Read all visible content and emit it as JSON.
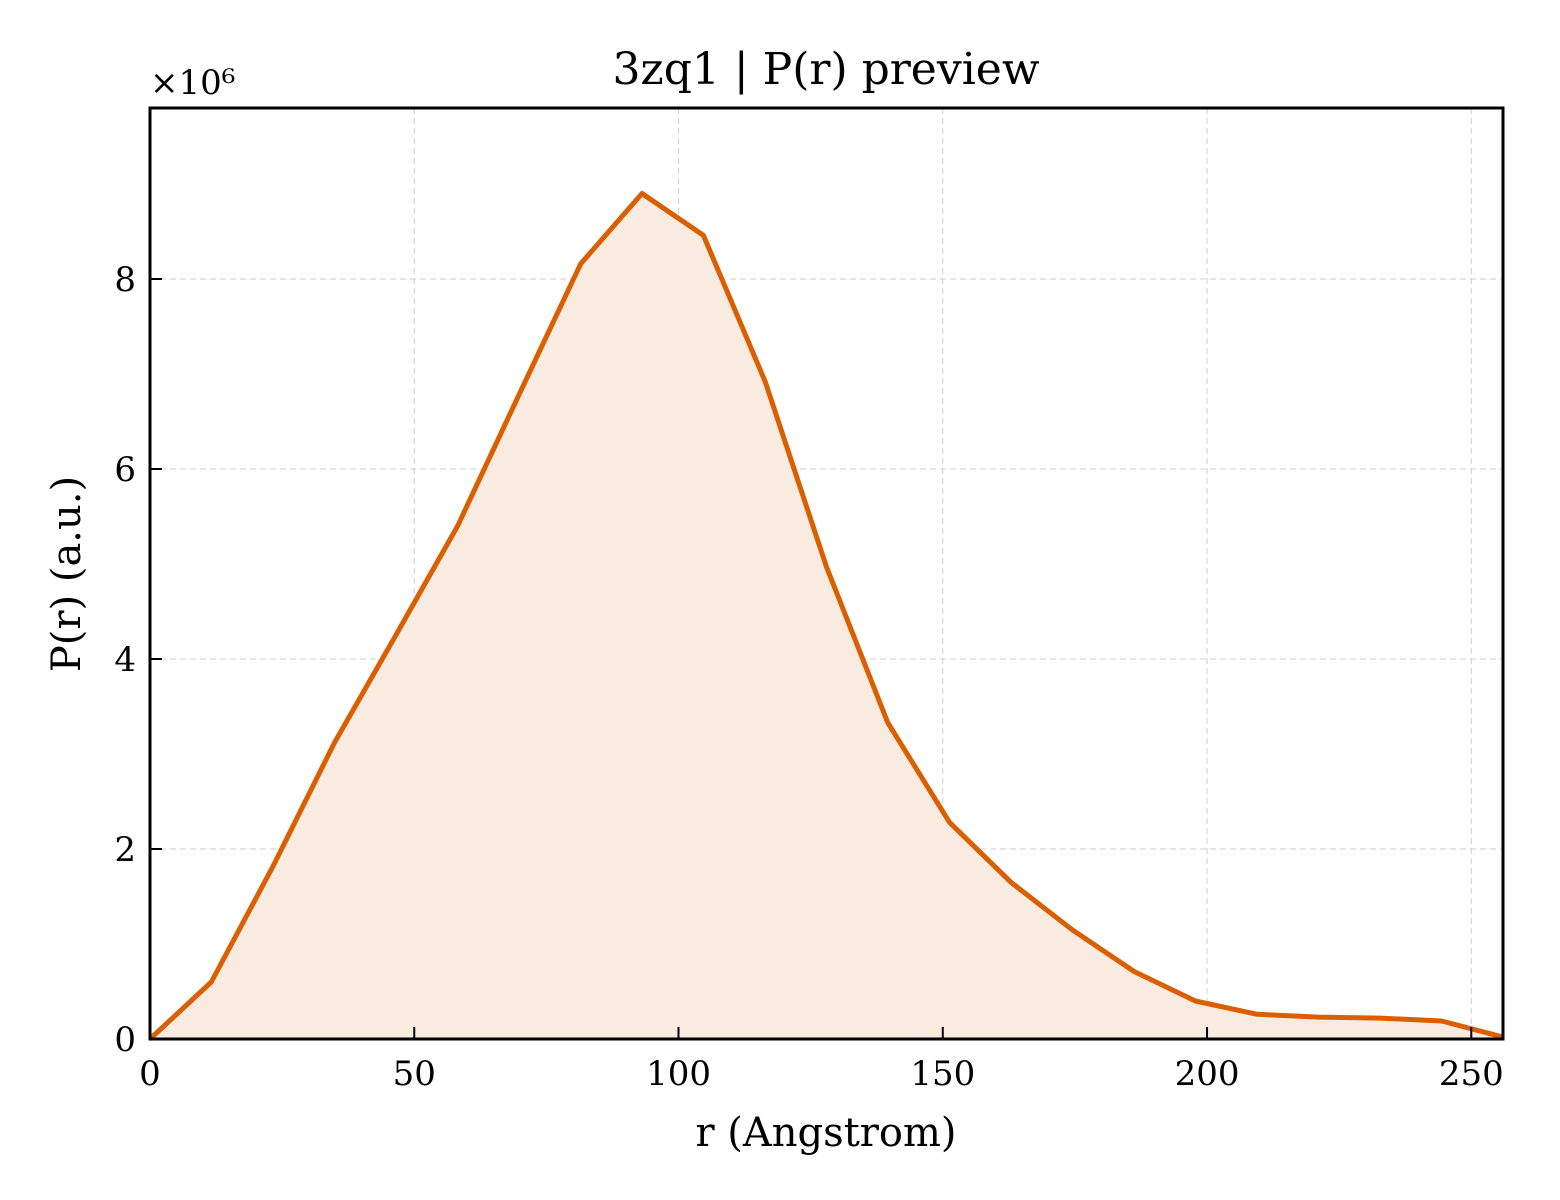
{
  "chart_data": {
    "type": "area",
    "title": "3zq1 | P(r) preview",
    "xlabel": "r (Angstrom)",
    "ylabel": "P(r) (a.u.)",
    "y_multiplier_label": "×10⁶",
    "xlim": [
      0,
      256
    ],
    "ylim": [
      0,
      9.8
    ],
    "xticks": [
      0,
      50,
      100,
      150,
      200,
      250
    ],
    "xtick_labels": [
      "0",
      "50",
      "100",
      "150",
      "200",
      "250"
    ],
    "yticks": [
      0,
      2,
      4,
      6,
      8
    ],
    "ytick_labels": [
      "0",
      "2",
      "4",
      "6",
      "8"
    ],
    "grid": true,
    "line_color": "#d95f02",
    "fill_color": "#f9ebe0",
    "series": [
      {
        "x": [
          0,
          11.6,
          23.3,
          34.9,
          46.5,
          58.2,
          69.8,
          81.5,
          93.1,
          104.7,
          116.4,
          128.0,
          139.6,
          151.3,
          162.9,
          174.5,
          186.2,
          197.8,
          209.5,
          221.1,
          232.7,
          244.4,
          256.0
        ],
        "y": [
          0,
          0.6,
          1.82,
          3.12,
          4.25,
          5.4,
          6.78,
          8.16,
          8.9,
          8.46,
          6.92,
          4.97,
          3.33,
          2.28,
          1.65,
          1.15,
          0.71,
          0.4,
          0.26,
          0.23,
          0.22,
          0.19,
          0.02
        ]
      }
    ]
  }
}
